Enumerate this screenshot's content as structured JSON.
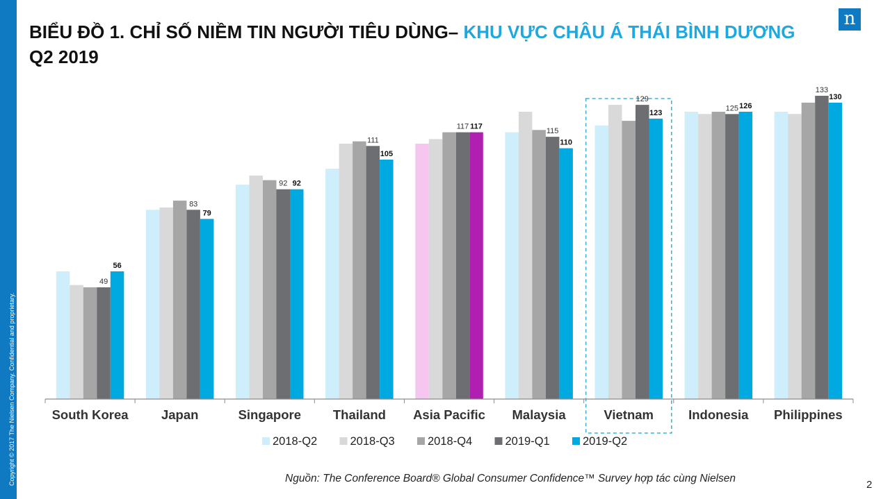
{
  "sidebar": {
    "copyright": "Copyright © 2017 The Nielsen Company. Confidential and proprietary."
  },
  "header": {
    "title_part1": "BIỂU ĐỒ 1. CHỈ SỐ NIỀM TIN NGƯỜI TIÊU DÙNG– ",
    "title_accent": "KHU VỰC CHÂU Á THÁI BÌNH DƯƠNG",
    "title_part2": " Q2 2019",
    "logo_letter": "n"
  },
  "footer": {
    "source": "Nguồn: The Conference Board® Global Consumer Confidence™ Survey hợp tác cùng  Nielsen",
    "page_number": "2"
  },
  "colors": {
    "2018-Q2": "#cdeefa",
    "2018-Q3": "#d9d9d9",
    "2018-Q4": "#a6a6a6",
    "2019-Q1": "#6d6e71",
    "2019-Q2": "#00a9e0",
    "asia_pacific_2018-Q2": "#f5c6f0",
    "asia_pacific_2019-Q2": "#b01fb0",
    "highlight_box": "#3cb4d8"
  },
  "chart_data": {
    "type": "bar",
    "categories": [
      "South Korea",
      "Japan",
      "Singapore",
      "Thailand",
      "Asia Pacific",
      "Malaysia",
      "Vietnam",
      "Indonesia",
      "Philippines"
    ],
    "series": [
      {
        "name": "2018-Q2",
        "values": [
          56,
          83,
          94,
          101,
          112,
          117,
          120,
          126,
          126
        ]
      },
      {
        "name": "2018-Q3",
        "values": [
          50,
          84,
          98,
          112,
          114,
          126,
          129,
          125,
          125
        ]
      },
      {
        "name": "2018-Q4",
        "values": [
          49,
          87,
          96,
          113,
          117,
          118,
          122,
          126,
          130
        ]
      },
      {
        "name": "2019-Q1",
        "values": [
          49,
          83,
          92,
          111,
          117,
          115,
          129,
          125,
          133
        ]
      },
      {
        "name": "2019-Q2",
        "values": [
          56,
          79,
          92,
          105,
          117,
          110,
          123,
          126,
          130
        ]
      }
    ],
    "labels": {
      "2019-Q1": [
        "49",
        "83",
        "92",
        "111",
        "117",
        "115",
        "129",
        "125",
        "133"
      ],
      "2019-Q2": [
        "56",
        "79",
        "92",
        "105",
        "117",
        "110",
        "123",
        "126",
        "130"
      ]
    },
    "highlight_category": "Vietnam",
    "special_category": "Asia Pacific",
    "ylim": [
      0,
      140
    ],
    "y_axis_visible": false,
    "grid": false,
    "legend_position": "bottom",
    "xlabel": "",
    "ylabel": ""
  }
}
